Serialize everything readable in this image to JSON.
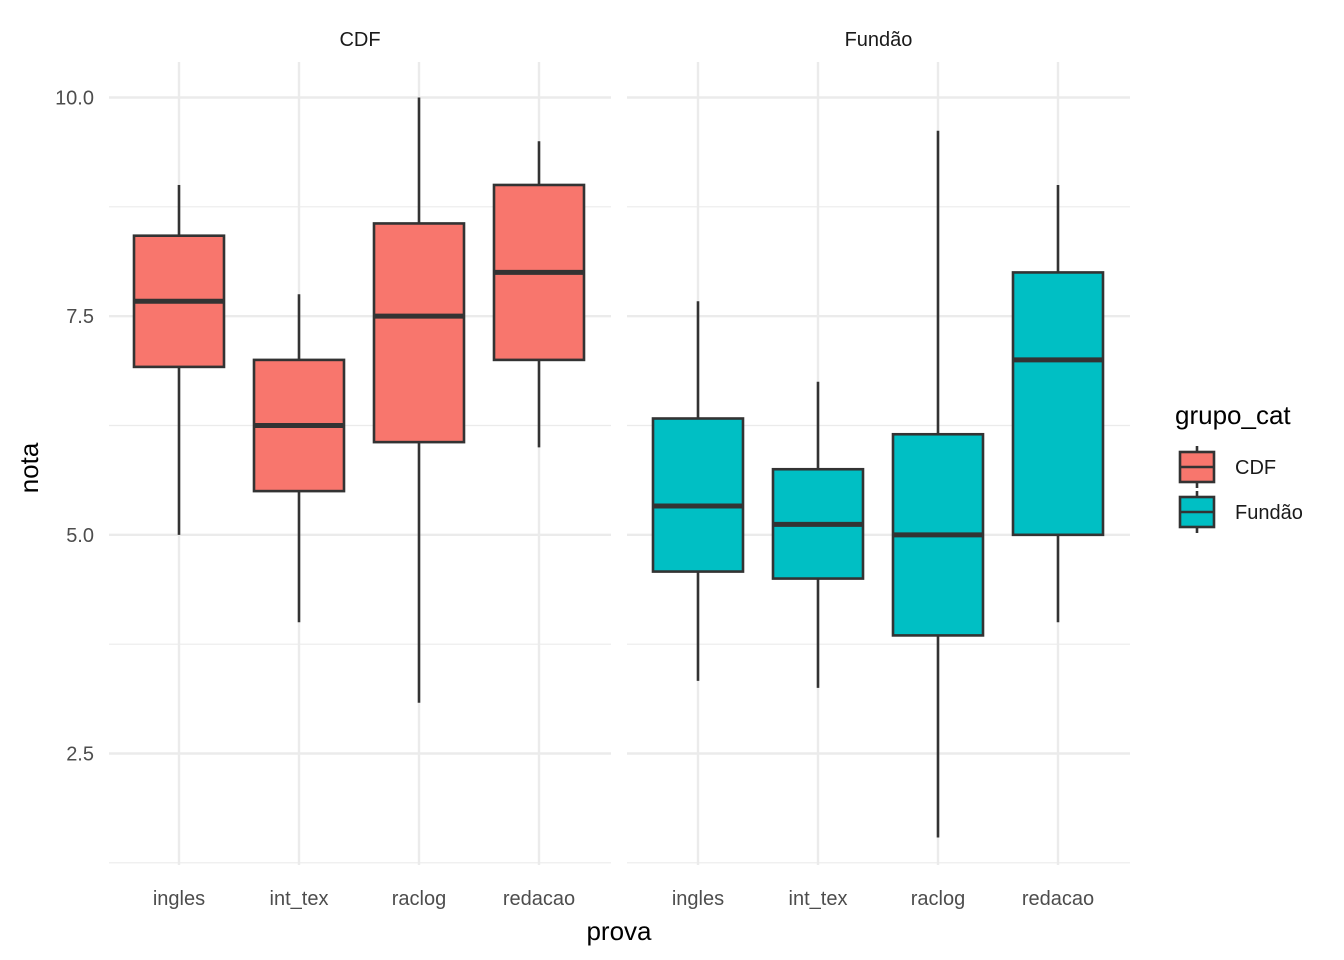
{
  "chart_data": {
    "type": "boxplot",
    "facet_var": "grupo_cat",
    "facets": [
      "CDF",
      "Fundão"
    ],
    "categories": [
      "ingles",
      "int_tex",
      "raclog",
      "redacao"
    ],
    "xlabel": "prova",
    "ylabel": "nota",
    "ylim": [
      1.25,
      10.4
    ],
    "yticks": [
      2.5,
      5.0,
      7.5,
      10.0
    ],
    "ytick_labels": [
      "2.5",
      "5.0",
      "7.5",
      "10.0"
    ],
    "grid": true,
    "legend": {
      "title": "grupo_cat",
      "position": "right",
      "entries": [
        {
          "label": "CDF",
          "color": "#F8766D"
        },
        {
          "label": "Fundão",
          "color": "#00BFC4"
        }
      ]
    },
    "series": [
      {
        "name": "CDF",
        "facet": "CDF",
        "color": "#F8766D",
        "boxes": [
          {
            "category": "ingles",
            "min": 5.0,
            "q1": 6.92,
            "median": 7.67,
            "q3": 8.42,
            "max": 9.0
          },
          {
            "category": "int_tex",
            "min": 4.0,
            "q1": 5.5,
            "median": 6.25,
            "q3": 7.0,
            "max": 7.75
          },
          {
            "category": "raclog",
            "min": 3.08,
            "q1": 6.06,
            "median": 7.5,
            "q3": 8.56,
            "max": 10.0
          },
          {
            "category": "redacao",
            "min": 6.0,
            "q1": 7.0,
            "median": 8.0,
            "q3": 9.0,
            "max": 9.5
          }
        ]
      },
      {
        "name": "Fundão",
        "facet": "Fundão",
        "color": "#00BFC4",
        "boxes": [
          {
            "category": "ingles",
            "min": 3.33,
            "q1": 4.58,
            "median": 5.33,
            "q3": 6.33,
            "max": 7.67
          },
          {
            "category": "int_tex",
            "min": 3.25,
            "q1": 4.5,
            "median": 5.12,
            "q3": 5.75,
            "max": 6.75
          },
          {
            "category": "raclog",
            "min": 1.54,
            "q1": 3.85,
            "median": 5.0,
            "q3": 6.15,
            "max": 9.62
          },
          {
            "category": "redacao",
            "min": 4.0,
            "q1": 5.0,
            "median": 7.0,
            "q3": 8.0,
            "max": 9.0
          }
        ]
      }
    ]
  }
}
